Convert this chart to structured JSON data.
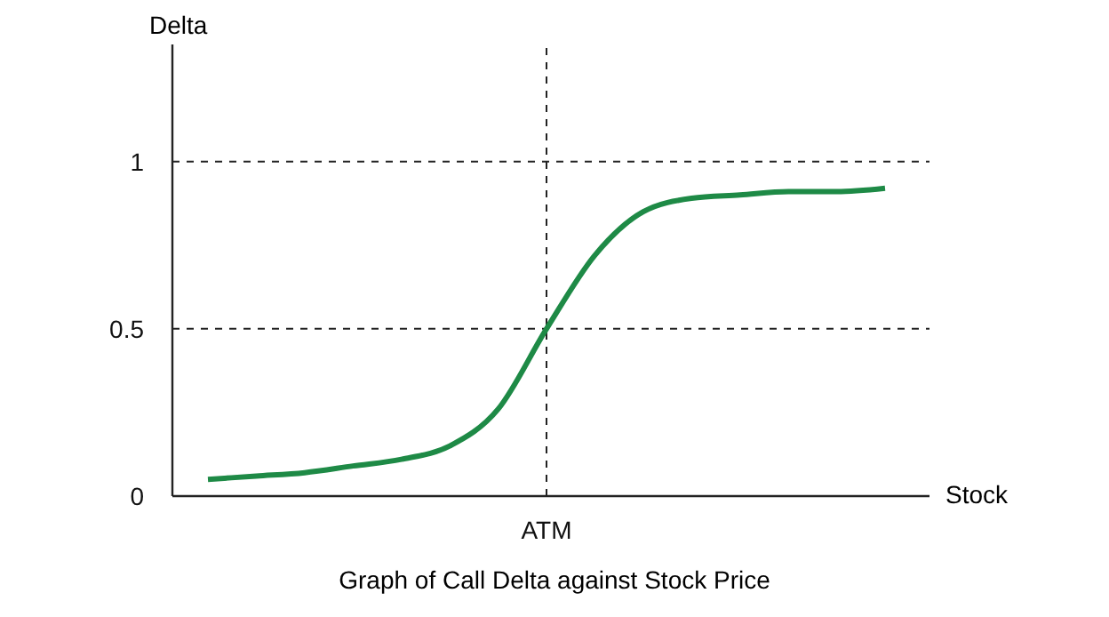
{
  "chart_data": {
    "type": "line",
    "title": "Graph of Call Delta against Stock Price",
    "xlabel": "Stock",
    "ylabel": "Delta",
    "categories": [
      null,
      null,
      null,
      null,
      null,
      null,
      null,
      "ATM",
      null,
      null,
      null,
      null,
      null,
      null,
      null
    ],
    "ylim": [
      0,
      1.35
    ],
    "yticks": [
      0,
      0.5,
      1
    ],
    "series": [
      {
        "color": "#1e8a46",
        "values": [
          0.05,
          0.06,
          0.07,
          0.09,
          0.11,
          0.15,
          0.26,
          0.5,
          0.72,
          0.85,
          0.89,
          0.9,
          0.91,
          0.91,
          0.92
        ]
      }
    ],
    "ref_lines": [
      {
        "axis": "y",
        "value": 1,
        "color": "#222222",
        "line_style": "dashed"
      },
      {
        "axis": "y",
        "value": 0.5,
        "color": "#222222",
        "line_style": "dashed"
      },
      {
        "axis": "x",
        "value": "ATM",
        "color": "#222222",
        "line_style": "dashed"
      }
    ],
    "grid": false,
    "legend": false,
    "marker": "none",
    "line_style": "solid"
  }
}
